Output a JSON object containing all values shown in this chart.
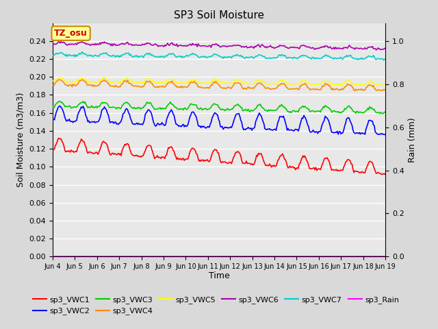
{
  "title": "SP3 Soil Moisture",
  "xlabel": "Time",
  "ylabel_left": "Soil Moisture (m3/m3)",
  "ylabel_right": "Rain (mm)",
  "ylim_left": [
    0.0,
    0.26
  ],
  "ylim_right": [
    0.0,
    1.083
  ],
  "xtick_labels": [
    "Jun 4",
    "Jun 5",
    "Jun 6",
    "Jun 7",
    "Jun 8",
    "Jun 9",
    "Jun 10",
    "Jun 11",
    "Jun 12",
    "Jun 13",
    "Jun 14",
    "Jun 15",
    "Jun 16",
    "Jun 17",
    "Jun 18",
    "Jun 19"
  ],
  "ytick_left": [
    0.0,
    0.02,
    0.04,
    0.06,
    0.08,
    0.1,
    0.12,
    0.14,
    0.16,
    0.18,
    0.2,
    0.22,
    0.24
  ],
  "ytick_right": [
    0.0,
    0.2,
    0.4,
    0.6,
    0.8,
    1.0
  ],
  "bg_color": "#d9d9d9",
  "plot_bg_color": "#e8e8e8",
  "grid_color": "#ffffff",
  "series_colors": {
    "sp3_VWC1": "#ff0000",
    "sp3_VWC2": "#0000ff",
    "sp3_VWC3": "#00cc00",
    "sp3_VWC4": "#ff8800",
    "sp3_VWC5": "#ffff00",
    "sp3_VWC6": "#aa00aa",
    "sp3_VWC7": "#00cccc",
    "sp3_Rain": "#ff00ff"
  },
  "tz_label": "TZ_osu",
  "tz_bg": "#ffff99",
  "tz_border": "#cc8800",
  "n_points": 360,
  "n_days": 15
}
